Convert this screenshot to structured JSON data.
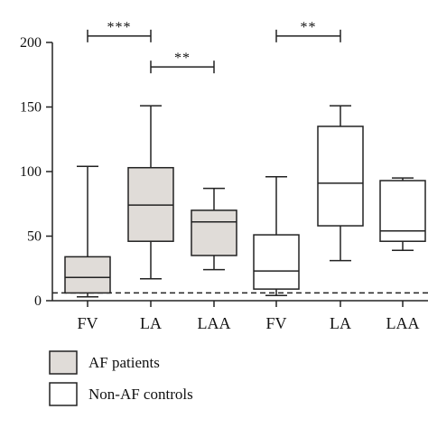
{
  "chart_data": {
    "type": "box",
    "ylabel": "",
    "ylim": [
      0,
      200
    ],
    "yticks": [
      0,
      50,
      100,
      150,
      200
    ],
    "grid": false,
    "reference_line": 6,
    "categories": [
      "FV",
      "LA",
      "LAA",
      "FV",
      "LA",
      "LAA"
    ],
    "boxes": [
      {
        "category": "FV",
        "group": "AF patients",
        "min": 3,
        "q1": 6,
        "median": 18,
        "q3": 34,
        "max": 104
      },
      {
        "category": "LA",
        "group": "AF patients",
        "min": 17,
        "q1": 46,
        "median": 74,
        "q3": 103,
        "max": 151
      },
      {
        "category": "LAA",
        "group": "AF patients",
        "min": 24,
        "q1": 35,
        "median": 61,
        "q3": 70,
        "max": 87
      },
      {
        "category": "FV",
        "group": "Non-AF controls",
        "min": 4,
        "q1": 9,
        "median": 23,
        "q3": 51,
        "max": 96
      },
      {
        "category": "LA",
        "group": "Non-AF controls",
        "min": 31,
        "q1": 58,
        "median": 91,
        "q3": 135,
        "max": 151
      },
      {
        "category": "LAA",
        "group": "Non-AF controls",
        "min": 39,
        "q1": 46,
        "median": 54,
        "q3": 93,
        "max": 95
      }
    ],
    "significance": [
      {
        "from": 0,
        "to": 1,
        "y": 205,
        "label": "***"
      },
      {
        "from": 1,
        "to": 2,
        "y": 181,
        "label": "**"
      },
      {
        "from": 3,
        "to": 4,
        "y": 205,
        "label": "**"
      }
    ],
    "legend": {
      "placement": "bottom-left",
      "entries": [
        {
          "label": "AF patients",
          "color": "#e0dcd8"
        },
        {
          "label": "Non-AF controls",
          "color": "#ffffff"
        }
      ]
    },
    "colors": {
      "af": "#e0dcd8",
      "control": "#ffffff",
      "stroke": "#222222"
    }
  }
}
